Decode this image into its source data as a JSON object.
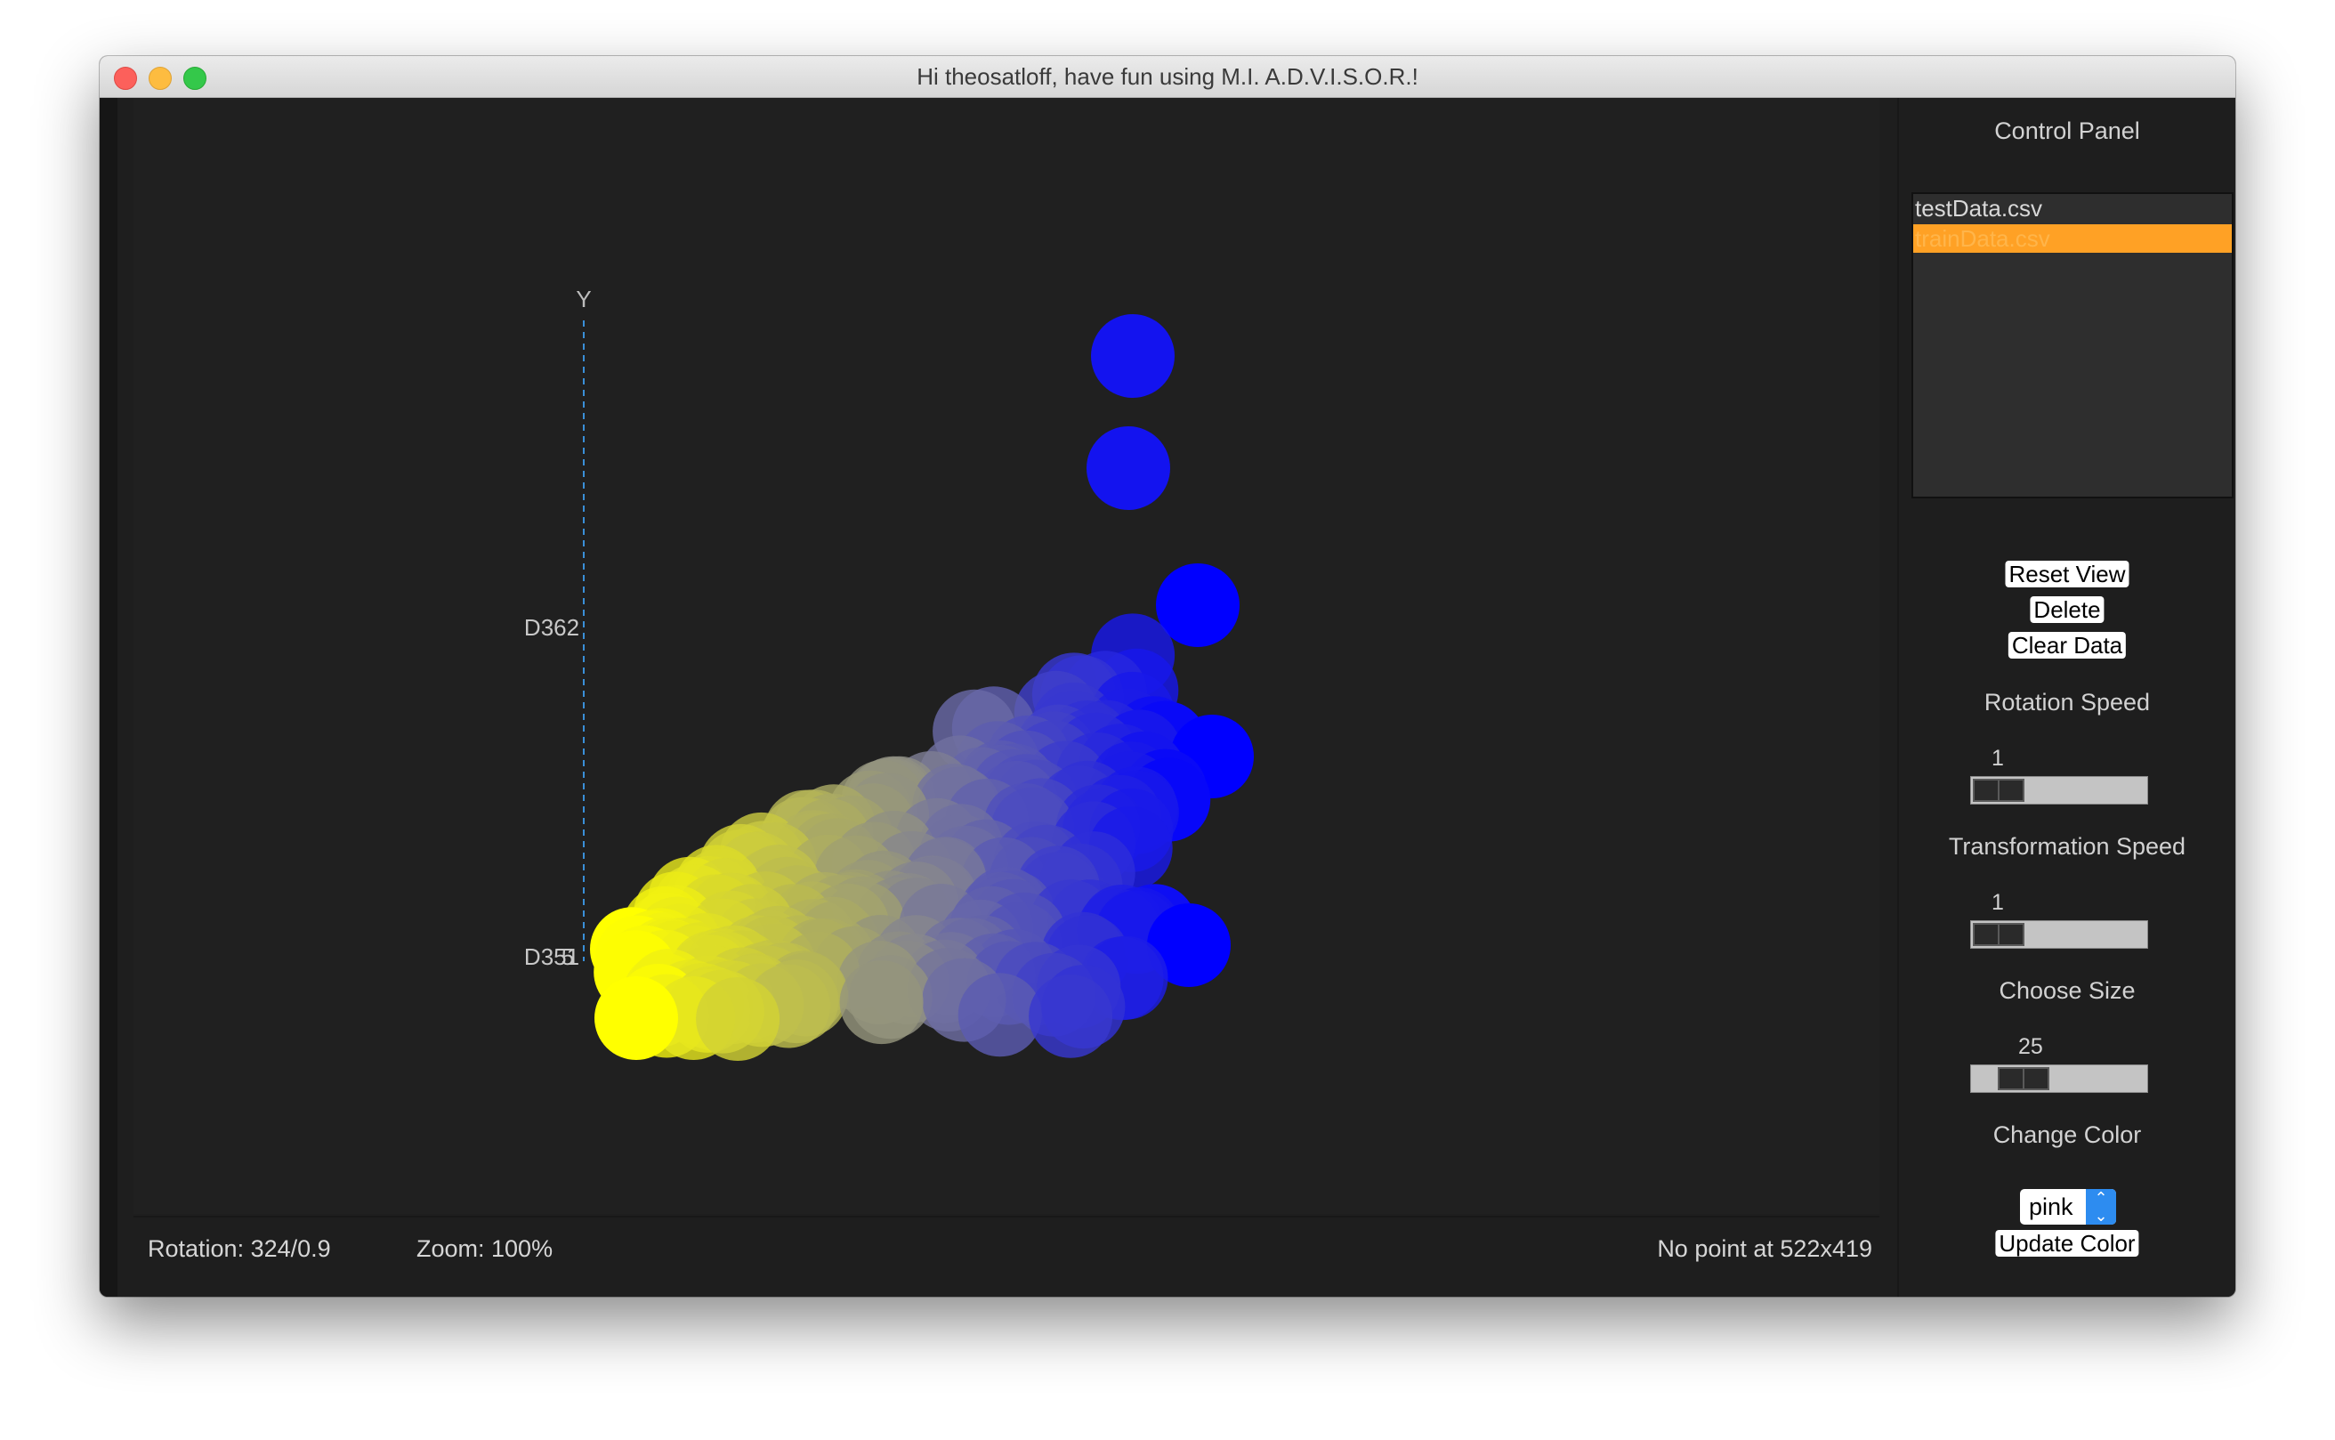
{
  "window": {
    "title": "Hi theosatloff, have fun using M.I. A.D.V.I.S.O.R.!"
  },
  "plot": {
    "axis_label": "Y",
    "tick_top": "D362",
    "tick_bottom": "D351",
    "tick_bottom_overlap": "5",
    "color_low": "#ffff00",
    "color_mid": "#8a8a8a",
    "color_high": "#0000ff"
  },
  "status": {
    "rotation": "Rotation: 324/0.9",
    "zoom": "Zoom: 100%",
    "point": "No point at 522x419"
  },
  "panel": {
    "title": "Control Panel",
    "files": [
      {
        "name": "testData.csv",
        "selected": false
      },
      {
        "name": "trainData.csv",
        "selected": true
      }
    ],
    "buttons": {
      "reset_view": "Reset View",
      "delete": "Delete",
      "clear_data": "Clear Data",
      "update_color": "Update Color"
    },
    "rotation_speed": {
      "label": "Rotation Speed",
      "value": "1",
      "position": 0.0
    },
    "transformation_speed": {
      "label": "Transformation Speed",
      "value": "1",
      "position": 0.0
    },
    "size": {
      "label": "Choose Size",
      "value": "25",
      "position": 0.2
    },
    "color": {
      "label": "Change Color",
      "selected": "pink"
    }
  }
}
